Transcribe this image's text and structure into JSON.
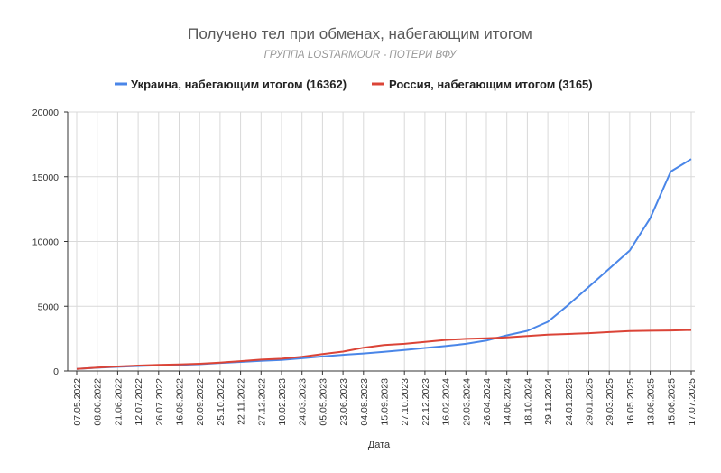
{
  "chart_data": {
    "type": "line",
    "title": "Получено тел при обменах, набегающим итогом",
    "subtitle": "ГРУППА LOSTARMOUR - ПОТЕРИ ВФУ",
    "xlabel": "Дата",
    "ylabel": "",
    "ylim": [
      0,
      20000
    ],
    "yticks": [
      "0",
      "5000",
      "10000",
      "15000",
      "20000"
    ],
    "grid": true,
    "legend_position": "top",
    "categories": [
      "07.05.2022",
      "08.06.2022",
      "21.06.2022",
      "12.07.2022",
      "26.07.2022",
      "16.08.2022",
      "20.09.2022",
      "25.10.2022",
      "22.11.2022",
      "27.12.2022",
      "10.02.2023",
      "24.03.2023",
      "05.05.2023",
      "23.06.2023",
      "04.08.2023",
      "15.09.2023",
      "27.10.2023",
      "22.12.2023",
      "16.02.2024",
      "29.03.2024",
      "26.04.2024",
      "14.06.2024",
      "18.10.2024",
      "29.11.2024",
      "24.01.2025",
      "29.01.2025",
      "29.03.2025",
      "16.05.2025",
      "13.06.2025",
      "15.06.2025",
      "17.07.2025"
    ],
    "series": [
      {
        "name": "Украина, набегающим итогом (16362)",
        "color": "#4a86e8",
        "values": [
          150,
          250,
          320,
          380,
          440,
          470,
          520,
          620,
          700,
          780,
          860,
          980,
          1120,
          1250,
          1350,
          1480,
          1620,
          1780,
          1920,
          2100,
          2350,
          2750,
          3100,
          3800,
          5100,
          6500,
          7900,
          9300,
          11800,
          15400,
          16362
        ]
      },
      {
        "name": "Россия, набегающим итогом (3165)",
        "color": "#db4437",
        "values": [
          150,
          260,
          350,
          420,
          470,
          500,
          560,
          650,
          760,
          880,
          950,
          1100,
          1300,
          1500,
          1800,
          2000,
          2100,
          2250,
          2400,
          2480,
          2520,
          2600,
          2700,
          2800,
          2860,
          2920,
          3000,
          3080,
          3110,
          3130,
          3165
        ]
      }
    ]
  }
}
